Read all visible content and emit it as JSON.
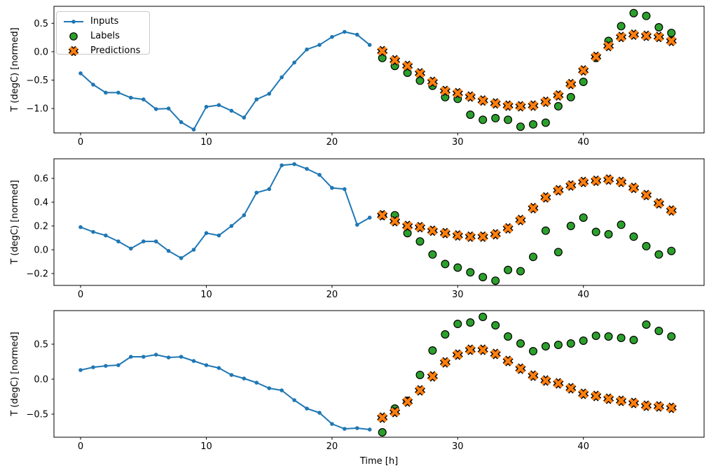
{
  "figure": {
    "background": "#ffffff",
    "xlabel": "Time [h]",
    "ylabel": "T (degC) [normed]"
  },
  "colors": {
    "inputs": "#1f77b4",
    "labels": "#2ca02c",
    "predictions": "#ff7f0e",
    "marker_edge": "#000000",
    "spine": "#000000",
    "legend_border": "#c9c9c9"
  },
  "legend": {
    "position": "upper left",
    "items": [
      {
        "label": "Inputs",
        "marker": "line-dot",
        "color": "#1f77b4"
      },
      {
        "label": "Labels",
        "marker": "circle",
        "color": "#2ca02c"
      },
      {
        "label": "Predictions",
        "marker": "X",
        "color": "#ff7f0e"
      }
    ]
  },
  "chart_data": [
    {
      "type": "line+scatter",
      "title": "",
      "xlabel": "",
      "ylabel": "T (degC) [normed]",
      "xlim": [
        -2.12,
        49.6
      ],
      "ylim": [
        -1.43,
        0.8
      ],
      "xticks": [
        0,
        10,
        20,
        30,
        40
      ],
      "xtick_labels": [
        "0",
        "10",
        "20",
        "30",
        "40"
      ],
      "yticks": [
        0.5,
        0.0,
        -0.5,
        -1.0
      ],
      "ytick_labels": [
        "0.5",
        "0.0",
        "−0.5",
        "−1.0"
      ],
      "grid": false,
      "legend_visible": true,
      "series": [
        {
          "name": "Inputs",
          "type": "line",
          "marker": "dot",
          "color": "#1f77b4",
          "x": [
            0,
            1,
            2,
            3,
            4,
            5,
            6,
            7,
            8,
            9,
            10,
            11,
            12,
            13,
            14,
            15,
            16,
            17,
            18,
            19,
            20,
            21,
            22,
            23
          ],
          "y": [
            -0.38,
            -0.58,
            -0.72,
            -0.72,
            -0.81,
            -0.84,
            -1.01,
            -1.0,
            -1.24,
            -1.37,
            -0.97,
            -0.94,
            -1.04,
            -1.16,
            -0.84,
            -0.74,
            -0.45,
            -0.19,
            0.04,
            0.12,
            0.26,
            0.35,
            0.3,
            0.12
          ]
        },
        {
          "name": "Labels",
          "type": "scatter",
          "marker": "circle",
          "color": "#2ca02c",
          "edgecolor": "#000000",
          "x": [
            24,
            25,
            26,
            27,
            28,
            29,
            30,
            31,
            32,
            33,
            34,
            35,
            36,
            37,
            38,
            39,
            40,
            41,
            42,
            43,
            44,
            45,
            46,
            47
          ],
          "y": [
            -0.11,
            -0.25,
            -0.37,
            -0.51,
            -0.6,
            -0.8,
            -0.83,
            -1.11,
            -1.2,
            -1.17,
            -1.2,
            -1.32,
            -1.28,
            -1.25,
            -0.96,
            -0.8,
            -0.53,
            -0.11,
            0.19,
            0.45,
            0.68,
            0.63,
            0.43,
            0.33
          ]
        },
        {
          "name": "Predictions",
          "type": "scatter",
          "marker": "X",
          "color": "#ff7f0e",
          "edgecolor": "#000000",
          "x": [
            24,
            25,
            26,
            27,
            28,
            29,
            30,
            31,
            32,
            33,
            34,
            35,
            36,
            37,
            38,
            39,
            40,
            41,
            42,
            43,
            44,
            45,
            46,
            47
          ],
          "y": [
            0.01,
            -0.15,
            -0.25,
            -0.38,
            -0.53,
            -0.69,
            -0.73,
            -0.79,
            -0.86,
            -0.91,
            -0.95,
            -0.96,
            -0.95,
            -0.88,
            -0.77,
            -0.57,
            -0.33,
            -0.09,
            0.1,
            0.26,
            0.3,
            0.28,
            0.26,
            0.19
          ]
        }
      ]
    },
    {
      "type": "line+scatter",
      "title": "",
      "xlabel": "",
      "ylabel": "T (degC) [normed]",
      "xlim": [
        -2.12,
        49.6
      ],
      "ylim": [
        -0.3,
        0.765
      ],
      "xticks": [
        0,
        10,
        20,
        30,
        40
      ],
      "xtick_labels": [
        "0",
        "10",
        "20",
        "30",
        "40"
      ],
      "yticks": [
        0.6,
        0.4,
        0.2,
        0.0,
        -0.2
      ],
      "ytick_labels": [
        "0.6",
        "0.4",
        "0.2",
        "0.0",
        "−0.2"
      ],
      "grid": false,
      "legend_visible": false,
      "series": [
        {
          "name": "Inputs",
          "type": "line",
          "marker": "dot",
          "color": "#1f77b4",
          "x": [
            0,
            1,
            2,
            3,
            4,
            5,
            6,
            7,
            8,
            9,
            10,
            11,
            12,
            13,
            14,
            15,
            16,
            17,
            18,
            19,
            20,
            21,
            22,
            23
          ],
          "y": [
            0.19,
            0.15,
            0.12,
            0.07,
            0.01,
            0.07,
            0.07,
            -0.01,
            -0.07,
            0.0,
            0.14,
            0.12,
            0.2,
            0.29,
            0.48,
            0.51,
            0.71,
            0.72,
            0.68,
            0.63,
            0.52,
            0.51,
            0.21,
            0.27
          ]
        },
        {
          "name": "Labels",
          "type": "scatter",
          "marker": "circle",
          "color": "#2ca02c",
          "edgecolor": "#000000",
          "x": [
            24,
            25,
            26,
            27,
            28,
            29,
            30,
            31,
            32,
            33,
            34,
            35,
            36,
            37,
            38,
            39,
            40,
            41,
            42,
            43,
            44,
            45,
            46,
            47
          ],
          "y": [
            0.29,
            0.29,
            0.14,
            0.07,
            -0.04,
            -0.12,
            -0.15,
            -0.19,
            -0.23,
            -0.26,
            -0.17,
            -0.18,
            -0.06,
            0.16,
            -0.02,
            0.2,
            0.27,
            0.15,
            0.13,
            0.21,
            0.11,
            0.03,
            -0.04,
            -0.01
          ]
        },
        {
          "name": "Predictions",
          "type": "scatter",
          "marker": "X",
          "color": "#ff7f0e",
          "edgecolor": "#000000",
          "x": [
            24,
            25,
            26,
            27,
            28,
            29,
            30,
            31,
            32,
            33,
            34,
            35,
            36,
            37,
            38,
            39,
            40,
            41,
            42,
            43,
            44,
            45,
            46,
            47
          ],
          "y": [
            0.29,
            0.24,
            0.2,
            0.19,
            0.16,
            0.14,
            0.12,
            0.11,
            0.11,
            0.13,
            0.18,
            0.25,
            0.35,
            0.44,
            0.5,
            0.54,
            0.57,
            0.58,
            0.59,
            0.57,
            0.52,
            0.46,
            0.39,
            0.33
          ]
        }
      ]
    },
    {
      "type": "line+scatter",
      "title": "",
      "xlabel": "Time [h]",
      "ylabel": "T (degC) [normed]",
      "xlim": [
        -2.12,
        49.6
      ],
      "ylim": [
        -0.83,
        0.98
      ],
      "xticks": [
        0,
        10,
        20,
        30,
        40
      ],
      "xtick_labels": [
        "0",
        "10",
        "20",
        "30",
        "40"
      ],
      "yticks": [
        0.5,
        0.0,
        -0.5
      ],
      "ytick_labels": [
        "0.5",
        "0.0",
        "−0.5"
      ],
      "grid": false,
      "legend_visible": false,
      "series": [
        {
          "name": "Inputs",
          "type": "line",
          "marker": "dot",
          "color": "#1f77b4",
          "x": [
            0,
            1,
            2,
            3,
            4,
            5,
            6,
            7,
            8,
            9,
            10,
            11,
            12,
            13,
            14,
            15,
            16,
            17,
            18,
            19,
            20,
            21,
            22,
            23
          ],
          "y": [
            0.13,
            0.17,
            0.19,
            0.2,
            0.32,
            0.32,
            0.35,
            0.31,
            0.32,
            0.26,
            0.2,
            0.16,
            0.06,
            0.01,
            -0.05,
            -0.13,
            -0.16,
            -0.3,
            -0.42,
            -0.48,
            -0.64,
            -0.71,
            -0.7,
            -0.72
          ]
        },
        {
          "name": "Labels",
          "type": "scatter",
          "marker": "circle",
          "color": "#2ca02c",
          "edgecolor": "#000000",
          "x": [
            24,
            25,
            26,
            27,
            28,
            29,
            30,
            31,
            32,
            33,
            34,
            35,
            36,
            37,
            38,
            39,
            40,
            41,
            42,
            43,
            44,
            45,
            46,
            47
          ],
          "y": [
            -0.76,
            -0.42,
            -0.31,
            0.06,
            0.41,
            0.64,
            0.79,
            0.81,
            0.89,
            0.77,
            0.61,
            0.51,
            0.4,
            0.47,
            0.49,
            0.51,
            0.55,
            0.62,
            0.61,
            0.59,
            0.56,
            0.78,
            0.69,
            0.61
          ]
        },
        {
          "name": "Predictions",
          "type": "scatter",
          "marker": "X",
          "color": "#ff7f0e",
          "edgecolor": "#000000",
          "x": [
            24,
            25,
            26,
            27,
            28,
            29,
            30,
            31,
            32,
            33,
            34,
            35,
            36,
            37,
            38,
            39,
            40,
            41,
            42,
            43,
            44,
            45,
            46,
            47
          ],
          "y": [
            -0.55,
            -0.47,
            -0.32,
            -0.16,
            0.04,
            0.24,
            0.35,
            0.42,
            0.42,
            0.36,
            0.26,
            0.15,
            0.05,
            -0.02,
            -0.06,
            -0.13,
            -0.21,
            -0.24,
            -0.28,
            -0.31,
            -0.34,
            -0.38,
            -0.39,
            -0.41
          ]
        }
      ]
    }
  ]
}
